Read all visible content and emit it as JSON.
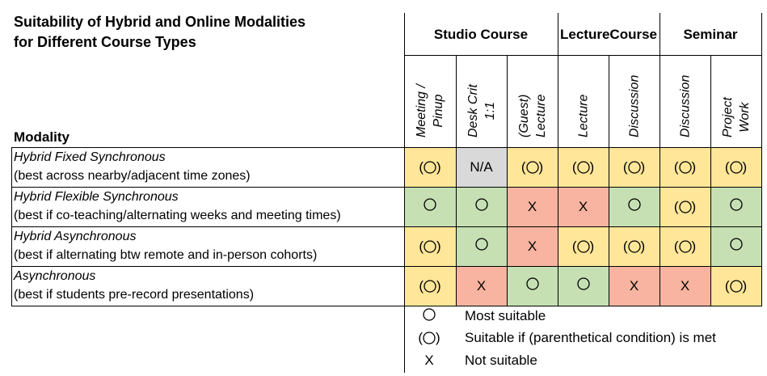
{
  "title": {
    "line1": "Suitability of Hybrid and Online Modalities",
    "line2": "for Different Course Types"
  },
  "row_header": "Modality",
  "groups": [
    {
      "label_lines": [
        "Studio Course"
      ],
      "cols": 3
    },
    {
      "label_lines": [
        "Lecture",
        "Course"
      ],
      "cols": 2
    },
    {
      "label_lines": [
        "Seminar"
      ],
      "cols": 2
    }
  ],
  "columns": [
    {
      "lines": [
        "Meeting /",
        "Pinup"
      ]
    },
    {
      "lines": [
        "Desk Crit",
        "1:1"
      ]
    },
    {
      "lines": [
        "(Guest)",
        "Lecture"
      ]
    },
    {
      "lines": [
        "Lecture"
      ]
    },
    {
      "lines": [
        "Discussion"
      ]
    },
    {
      "lines": [
        "Discussion"
      ]
    },
    {
      "lines": [
        "Project",
        "Work"
      ]
    }
  ],
  "rows": [
    {
      "name": "Hybrid Fixed Synchronous",
      "note": "(best across nearby/adjacent time zones)",
      "cells": [
        "cond",
        "na",
        "cond",
        "cond",
        "cond",
        "cond",
        "cond"
      ]
    },
    {
      "name": "Hybrid Flexible Synchronous",
      "note": "(best if co-teaching/alternating weeks and meeting times)",
      "cells": [
        "suit",
        "suit",
        "not",
        "not",
        "suit",
        "cond",
        "suit"
      ]
    },
    {
      "name": "Hybrid Asynchronous",
      "note": "(best if alternating btw remote and in-person cohorts)",
      "cells": [
        "cond",
        "suit",
        "not",
        "cond",
        "cond",
        "cond",
        "suit"
      ]
    },
    {
      "name": "Asynchronous",
      "note": "(best if students pre-record presentations)",
      "cells": [
        "cond",
        "not",
        "suit",
        "suit",
        "not",
        "not",
        "cond"
      ]
    }
  ],
  "cell_types": {
    "suit": {
      "label": "most-suitable",
      "color": "#c6e0b4",
      "symbol": "circle"
    },
    "cond": {
      "label": "suitable-if-condition-met",
      "color": "#ffe699",
      "symbol": "paren-circle"
    },
    "not": {
      "label": "not-suitable",
      "color": "#f8b4a0",
      "symbol": "X"
    },
    "na": {
      "label": "not-applicable",
      "color": "#d9d9d9",
      "symbol": "N/A"
    }
  },
  "na_text": "N/A",
  "x_text": "X",
  "legend": [
    {
      "type": "suit",
      "text": "Most suitable"
    },
    {
      "type": "cond",
      "text": "Suitable if (parenthetical condition) is met"
    },
    {
      "type": "not",
      "text": "Not suitable"
    }
  ]
}
